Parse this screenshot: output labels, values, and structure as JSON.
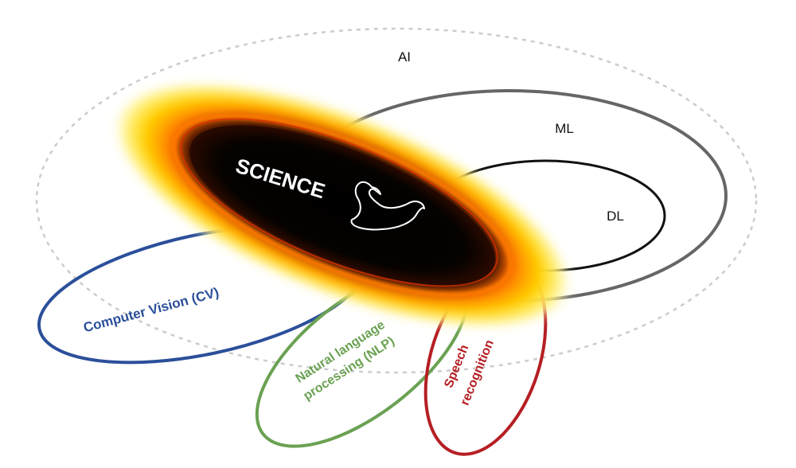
{
  "labels": {
    "ai": "AI",
    "ml": "ML",
    "dl": "DL",
    "science": "SCIENCE",
    "cv": "Computer Vision (CV)",
    "nlp_line1": "Natural language",
    "nlp_line2": "processing (NLP)",
    "speech_line1": "Speech",
    "speech_line2": "recognition"
  },
  "colors": {
    "ai_ring": "#cccccc",
    "ml_ring": "#666666",
    "dl_ring": "#111111",
    "cv": "#2b4f9a",
    "nlp": "#6aa152",
    "speech": "#b51f24",
    "science_core": "#000000",
    "glow_inner": "#ff8c00",
    "glow_outer": "#ffe800"
  },
  "icons": {
    "science_symbol": "swan-icon"
  }
}
